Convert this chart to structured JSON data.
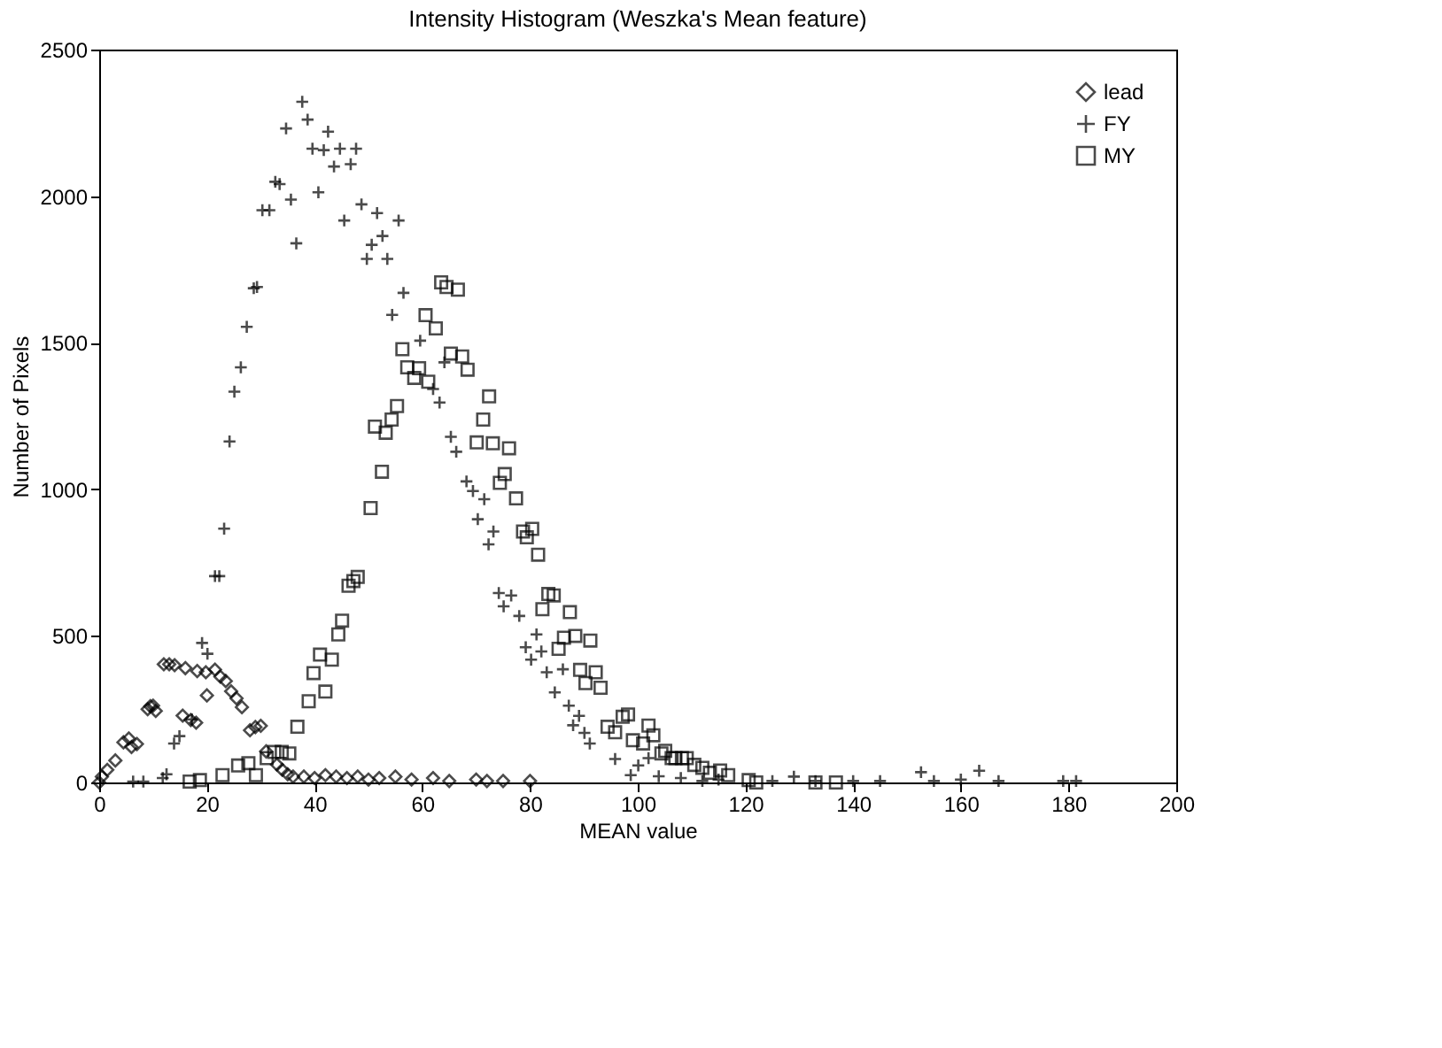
{
  "chart_data": {
    "type": "scatter",
    "title": "Intensity Histogram (Weszka's Mean feature)",
    "xlabel": "MEAN value",
    "ylabel": "Number of Pixels",
    "xlim": [
      0,
      200
    ],
    "xticks": [
      0,
      20,
      40,
      60,
      80,
      100,
      120,
      140,
      160,
      180,
      200
    ],
    "ylim": [
      0,
      2500
    ],
    "yticks": [
      0,
      500,
      1000,
      1500,
      2000,
      2500
    ],
    "grid": false,
    "legend": "top right",
    "series": [
      {
        "name": "lead",
        "color": "#000000",
        "marker": "diamond",
        "x": [
          0,
          0.5,
          1.5,
          3,
          4.5,
          5.5,
          6,
          7,
          9,
          9.5,
          10,
          10.5,
          12,
          13,
          14,
          15.5,
          16,
          17,
          18.2,
          18,
          19.8,
          20,
          21.5,
          22.5,
          23.5,
          24.5,
          25.5,
          26.5,
          28,
          29,
          30,
          31,
          33,
          34,
          35,
          36,
          38,
          40,
          42,
          44,
          46,
          48,
          50,
          52,
          55,
          58,
          62,
          65,
          70,
          72,
          75,
          80
        ],
        "values": [
          0,
          20,
          43,
          75,
          137,
          150,
          121,
          131,
          250,
          260,
          262,
          244,
          403,
          403,
          400,
          228,
          390,
          213,
          380,
          204,
          376,
          297,
          385,
          361,
          346,
          311,
          287,
          257,
          178,
          189,
          193,
          106,
          61,
          43,
          28,
          20,
          20,
          15,
          25,
          20,
          15,
          20,
          10,
          15,
          20,
          10,
          15,
          5,
          10,
          5,
          5,
          5
        ]
      },
      {
        "name": "FY",
        "color": "#000000",
        "marker": "cross",
        "x": [
          6.3,
          8.2,
          11.8,
          12.5,
          13.9,
          14.9,
          17.2,
          19.1,
          20.1,
          21.5,
          22.3,
          23.2,
          24.2,
          25.1,
          26.3,
          27.4,
          28.7,
          29.3,
          30.3,
          31.6,
          32.7,
          33.5,
          34.7,
          35.6,
          36.6,
          37.7,
          38.7,
          39.6,
          40.7,
          41.7,
          42.5,
          43.6,
          44.7,
          45.5,
          46.7,
          47.7,
          48.7,
          49.7,
          50.6,
          51.6,
          52.6,
          53.5,
          54.4,
          55.6,
          56.5,
          59.6,
          62,
          63.2,
          64.1,
          65.3,
          66.3,
          68.2,
          69.4,
          70.3,
          71.5,
          72.3,
          73.2,
          74.2,
          75.1,
          76.5,
          78,
          79.2,
          80.2,
          81.2,
          82.1,
          83.1,
          84.6,
          86.1,
          87.2,
          88,
          89.1,
          90.1,
          91.1,
          95.8,
          98.7,
          100.1,
          102,
          103.9,
          108,
          112,
          115,
          125,
          129,
          133,
          140,
          145,
          152.6,
          155,
          160,
          163.4,
          167,
          179,
          181.4
        ],
        "values": [
          3,
          3,
          15,
          28,
          133,
          158,
          215,
          476,
          439,
          704,
          704,
          866,
          1163,
          1333,
          1416,
          1554,
          1686,
          1690,
          1952,
          1952,
          2049,
          2041,
          2231,
          1988,
          1839,
          2322,
          2261,
          2162,
          2013,
          2157,
          2220,
          2101,
          2162,
          1917,
          2109,
          2162,
          1972,
          1786,
          1834,
          1942,
          1864,
          1786,
          1595,
          1917,
          1670,
          1507,
          1342,
          1296,
          1433,
          1179,
          1128,
          1027,
          994,
          898,
          966,
          812,
          856,
          646,
          601,
          638,
          568,
          461,
          419,
          505,
          447,
          376,
          307,
          386,
          262,
          195,
          227,
          169,
          133,
          80,
          25,
          58,
          83,
          21,
          15,
          5,
          10,
          5,
          20,
          5,
          5,
          5,
          35,
          5,
          10,
          40,
          5,
          5,
          5
        ]
      },
      {
        "name": "MY",
        "color": "#000000",
        "marker": "square",
        "x": [
          16.8,
          18.7,
          22.9,
          25.8,
          27.7,
          29.1,
          31.1,
          32.5,
          33.9,
          35.3,
          36.8,
          38.9,
          39.8,
          41,
          42,
          43.2,
          44.4,
          45.1,
          46.3,
          47.2,
          48,
          50.4,
          51.2,
          52.5,
          53.2,
          54.3,
          55.3,
          56.3,
          57.2,
          58.5,
          59.4,
          60.6,
          61.1,
          62.5,
          63.5,
          64.5,
          65.3,
          66.6,
          67.4,
          68.4,
          70.1,
          71.3,
          72.4,
          73.1,
          74.4,
          75.3,
          76.1,
          77.4,
          78.7,
          79.4,
          80.4,
          81.5,
          82.3,
          83.4,
          84.4,
          85.3,
          86.3,
          87.4,
          88.4,
          89.3,
          90.3,
          91.2,
          92.2,
          93.1,
          94.4,
          95.8,
          97.2,
          98.2,
          99.1,
          101,
          102,
          102.9,
          104.4,
          105.1,
          106.3,
          107,
          108.2,
          109.1,
          110.5,
          112,
          113.4,
          115.3,
          116.8,
          120.6,
          122,
          133,
          136.8
        ],
        "values": [
          3,
          8,
          25,
          58,
          66,
          25,
          83,
          104,
          104,
          99,
          190,
          277,
          373,
          436,
          310,
          419,
          505,
          552,
          671,
          687,
          701,
          936,
          1214,
          1060,
          1193,
          1238,
          1284,
          1478,
          1416,
          1380,
          1413,
          1594,
          1367,
          1549,
          1706,
          1690,
          1463,
          1681,
          1453,
          1408,
          1160,
          1238,
          1317,
          1157,
          1022,
          1052,
          1140,
          969,
          856,
          836,
          865,
          777,
          591,
          643,
          638,
          456,
          494,
          581,
          500,
          384,
          339,
          484,
          376,
          323,
          190,
          171,
          224,
          232,
          144,
          133,
          194,
          161,
          99,
          108,
          83,
          83,
          83,
          83,
          60,
          50,
          33,
          41,
          25,
          8,
          0,
          0,
          0
        ]
      }
    ]
  }
}
